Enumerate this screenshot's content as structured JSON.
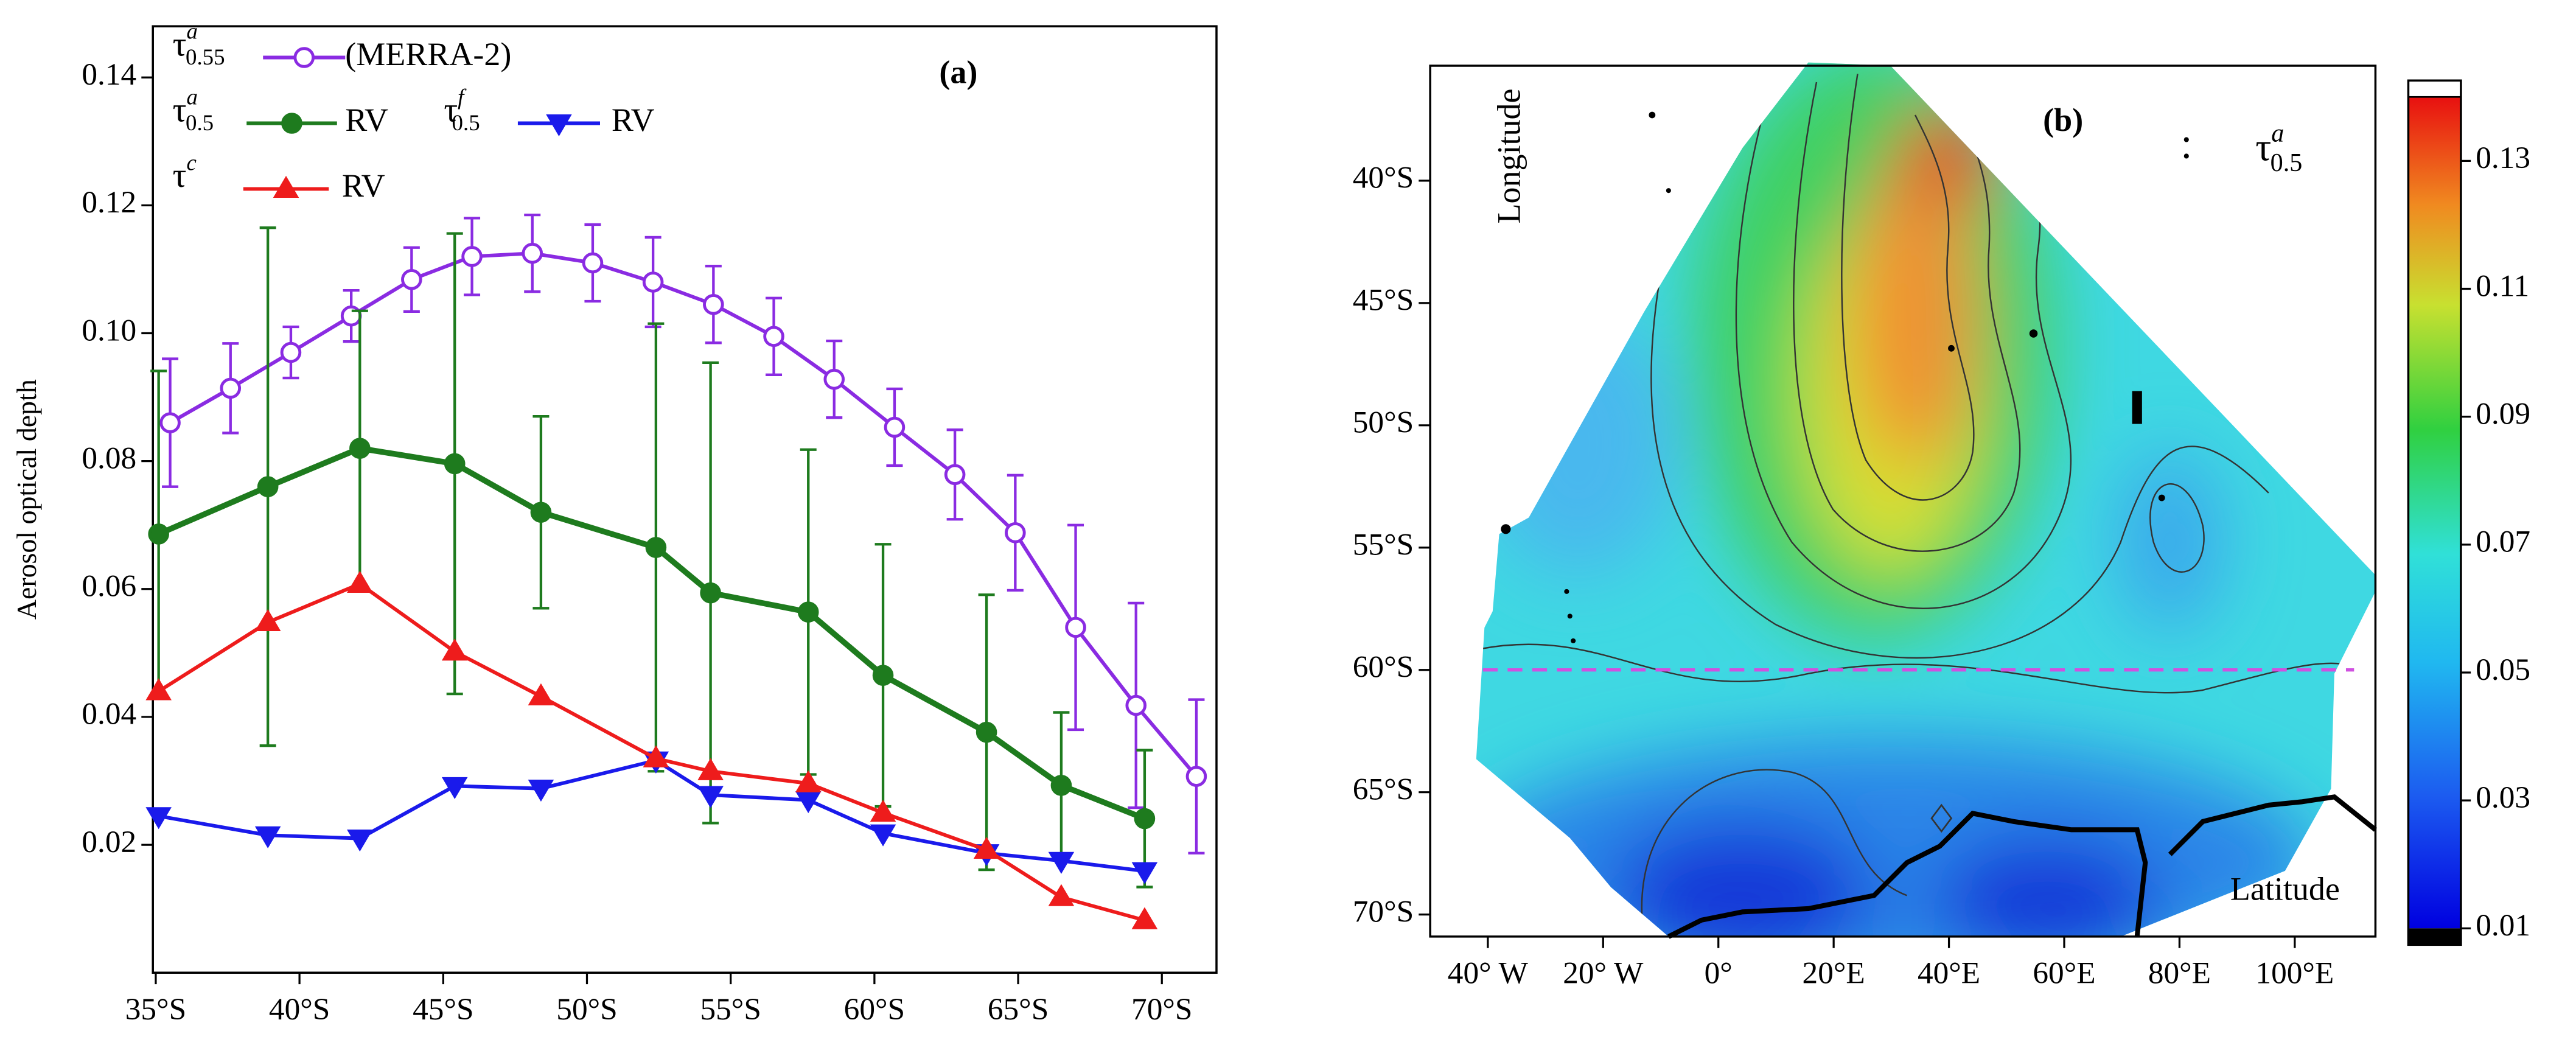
{
  "chart_data": [
    {
      "type": "line",
      "y_label": "Aerosol optical depth",
      "annotation": "(a)",
      "xlim": [
        34.9,
        71.9
      ],
      "ylim": [
        0,
        0.148
      ],
      "xticks": [
        {
          "value": 35,
          "label": "35°S"
        },
        {
          "value": 40,
          "label": "40°S"
        },
        {
          "value": 45,
          "label": "45°S"
        },
        {
          "value": 50,
          "label": "50°S"
        },
        {
          "value": 55,
          "label": "55°S"
        },
        {
          "value": 60,
          "label": "60°S"
        },
        {
          "value": 65,
          "label": "65°S"
        },
        {
          "value": 70,
          "label": "70°S"
        }
      ],
      "yticks": [
        0.02,
        0.04,
        0.06,
        0.08,
        {
          "value": 0.1,
          "label": "0.10"
        },
        0.12,
        0.14
      ],
      "series": [
        {
          "name": "(MERRA-2)",
          "symbol": {
            "base": "τ",
            "sup": "a",
            "sub": "0.55"
          },
          "color": "#8a2be2",
          "marker": "open-circle",
          "x": [
            35.5,
            37.6,
            39.7,
            41.8,
            43.9,
            46,
            48.1,
            50.2,
            52.3,
            54.4,
            56.5,
            58.6,
            60.7,
            62.8,
            64.9,
            67,
            69.1,
            71.2
          ],
          "values": [
            0.086,
            0.0914,
            0.097,
            0.1027,
            0.1084,
            0.112,
            0.1125,
            0.111,
            0.108,
            0.1045,
            0.0995,
            0.0928,
            0.0853,
            0.0779,
            0.0688,
            0.054,
            0.0418,
            0.0307
          ],
          "errors": [
            0.01,
            0.007,
            0.004,
            0.004,
            0.005,
            0.006,
            0.006,
            0.006,
            0.007,
            0.006,
            0.006,
            0.006,
            0.006,
            0.007,
            0.009,
            0.016,
            0.016,
            0.012
          ]
        },
        {
          "name": "RV",
          "symbol": {
            "base": "τ",
            "sup": "a",
            "sub": "0.5"
          },
          "color": "#1e7b1e",
          "marker": "circle",
          "x": [
            35.1,
            38.9,
            42.1,
            45.4,
            48.4,
            52.4,
            54.3,
            57.7,
            60.3,
            63.9,
            66.5,
            69.4
          ],
          "values": [
            0.0686,
            0.076,
            0.082,
            0.0796,
            0.072,
            0.0665,
            0.0594,
            0.0564,
            0.0465,
            0.0376,
            0.0293,
            0.0241
          ],
          "errors": [
            0.0255,
            0.0405,
            0.0215,
            0.036,
            0.015,
            0.035,
            0.036,
            0.0254,
            0.0205,
            0.0215,
            0.0114,
            0.0107
          ]
        },
        {
          "name": "RV",
          "symbol": {
            "base": "τ",
            "sup": "f",
            "sub": "0.5"
          },
          "color": "#1a1aeb",
          "marker": "triangle-down",
          "x": [
            35.1,
            38.9,
            42.1,
            45.4,
            48.4,
            52.4,
            54.3,
            57.7,
            60.3,
            63.9,
            66.5,
            69.4
          ],
          "values": [
            0.0245,
            0.0215,
            0.021,
            0.0292,
            0.0288,
            0.0332,
            0.0278,
            0.027,
            0.0218,
            0.0187,
            0.0175,
            0.0159
          ]
        },
        {
          "name": "RV",
          "symbol": {
            "base": "τ",
            "sup": "c"
          },
          "color": "#ee1c1c",
          "marker": "triangle-up",
          "x": [
            35.1,
            38.9,
            42.1,
            45.4,
            48.4,
            52.4,
            54.3,
            57.7,
            60.3,
            63.9,
            66.5,
            69.4
          ],
          "values": [
            0.044,
            0.0548,
            0.0608,
            0.0502,
            0.0432,
            0.0335,
            0.0315,
            0.0296,
            0.025,
            0.0192,
            0.0118,
            0.0082
          ]
        }
      ]
    },
    {
      "type": "map",
      "annotation": "(b)",
      "symbol": {
        "base": "τ",
        "sup": "a",
        "sub": "0.5"
      },
      "y_label": "Longitude",
      "x_label": "Latitude",
      "xlim": [
        -50,
        114
      ],
      "ylim": [
        35.3,
        70.9
      ],
      "xticks": [
        {
          "value": -40,
          "label": "40° W"
        },
        {
          "value": -20,
          "label": "20° W"
        },
        {
          "value": 0,
          "label": "0°"
        },
        {
          "value": 20,
          "label": "20°E"
        },
        {
          "value": 40,
          "label": "40°E"
        },
        {
          "value": 60,
          "label": "60°E"
        },
        {
          "value": 80,
          "label": "80°E"
        },
        {
          "value": 100,
          "label": "100°E"
        }
      ],
      "yticks": [
        {
          "value": 40,
          "label": "40°S"
        },
        {
          "value": 45,
          "label": "45°S"
        },
        {
          "value": 50,
          "label": "50°S"
        },
        {
          "value": 55,
          "label": "55°S"
        },
        {
          "value": 60,
          "label": "60°S"
        },
        {
          "value": 65,
          "label": "65°S"
        },
        {
          "value": 70,
          "label": "70°S"
        }
      ],
      "reference_line": {
        "y": 60,
        "color": "#d050e0"
      },
      "colorbar": {
        "lim": [
          0.01,
          0.14
        ],
        "ticks": [
          0.01,
          0.03,
          0.05,
          0.07,
          0.09,
          0.11,
          0.13
        ]
      }
    }
  ]
}
